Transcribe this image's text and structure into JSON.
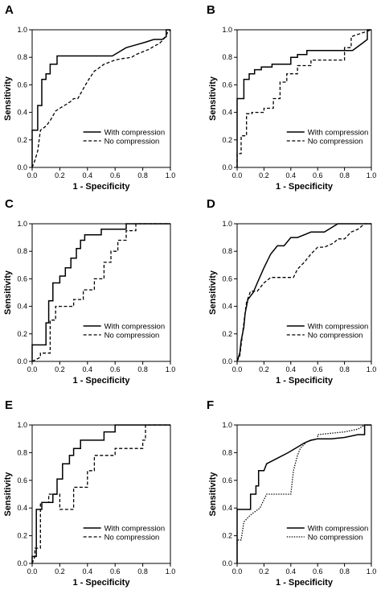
{
  "figure": {
    "panels": [
      {
        "letter": "A",
        "xlabel": "1 - Specificity",
        "ylabel": "Sensitivity"
      },
      {
        "letter": "B",
        "xlabel": "1 - Specificity",
        "ylabel": "Sensitivity"
      },
      {
        "letter": "C",
        "xlabel": "1 - Specificity",
        "ylabel": "Sensitivity"
      },
      {
        "letter": "D",
        "xlabel": "1 - Specificity",
        "ylabel": "Sensitivity"
      },
      {
        "letter": "E",
        "xlabel": "1 - Specificity",
        "ylabel": "Sensitivity"
      },
      {
        "letter": "F",
        "xlabel": "1 - Specificity",
        "ylabel": "Sensitivity"
      }
    ],
    "line_color": "#000000",
    "background_color": "#ffffff"
  },
  "chart_data": [
    {
      "type": "line",
      "panel": "A",
      "xlabel": "1 - Specificity",
      "ylabel": "Sensitivity",
      "xlim": [
        0,
        1
      ],
      "ylim": [
        0,
        1
      ],
      "xticks": [
        "0.0",
        "0.2",
        "0.4",
        "0.6",
        "0.8",
        "1.0"
      ],
      "yticks": [
        "0.0",
        "0.2",
        "0.4",
        "0.6",
        "0.8",
        "1.0"
      ],
      "grid": false,
      "legend": "lower-right",
      "series": [
        {
          "name": "With compression",
          "style": "solid",
          "x": [
            0,
            0,
            0.04,
            0.04,
            0.07,
            0.07,
            0.1,
            0.1,
            0.13,
            0.13,
            0.18,
            0.18,
            0.58,
            0.63,
            0.68,
            0.75,
            0.82,
            0.88,
            0.94,
            0.97,
            0.97,
            1.0
          ],
          "y": [
            0,
            0.27,
            0.27,
            0.45,
            0.45,
            0.64,
            0.64,
            0.68,
            0.68,
            0.75,
            0.75,
            0.81,
            0.81,
            0.84,
            0.87,
            0.89,
            0.91,
            0.93,
            0.93,
            0.95,
            1.0,
            1.0
          ]
        },
        {
          "name": "No compression",
          "style": "dashed",
          "x": [
            0,
            0.02,
            0.04,
            0.06,
            0.1,
            0.13,
            0.17,
            0.2,
            0.25,
            0.28,
            0.3,
            0.33,
            0.38,
            0.41,
            0.45,
            0.48,
            0.52,
            0.6,
            0.65,
            0.72,
            0.75,
            0.8,
            0.85,
            0.88,
            0.92,
            0.95,
            0.98,
            1.0
          ],
          "y": [
            0,
            0.05,
            0.12,
            0.27,
            0.3,
            0.34,
            0.41,
            0.43,
            0.46,
            0.48,
            0.5,
            0.5,
            0.59,
            0.64,
            0.7,
            0.72,
            0.75,
            0.78,
            0.79,
            0.8,
            0.82,
            0.84,
            0.86,
            0.88,
            0.9,
            0.93,
            0.98,
            1.0
          ]
        }
      ]
    },
    {
      "type": "line",
      "panel": "B",
      "xlabel": "1 - Specificity",
      "ylabel": "Sensitivity",
      "xlim": [
        0,
        1
      ],
      "ylim": [
        0,
        1
      ],
      "xticks": [
        "0.0",
        "0.2",
        "0.4",
        "0.6",
        "0.8",
        "1.0"
      ],
      "yticks": [
        "0.0",
        "0.2",
        "0.4",
        "0.6",
        "0.8",
        "1.0"
      ],
      "grid": false,
      "legend": "lower-right",
      "series": [
        {
          "name": "With compression",
          "style": "solid",
          "x": [
            0,
            0,
            0.05,
            0.05,
            0.09,
            0.09,
            0.13,
            0.13,
            0.18,
            0.18,
            0.26,
            0.26,
            0.4,
            0.4,
            0.45,
            0.45,
            0.52,
            0.52,
            0.6,
            0.86,
            0.93,
            0.97,
            0.97,
            1.0
          ],
          "y": [
            0,
            0.5,
            0.5,
            0.64,
            0.64,
            0.68,
            0.68,
            0.71,
            0.71,
            0.73,
            0.73,
            0.75,
            0.75,
            0.8,
            0.8,
            0.82,
            0.82,
            0.85,
            0.85,
            0.85,
            0.9,
            0.93,
            1.0,
            1.0
          ]
        },
        {
          "name": "No compression",
          "style": "dashed",
          "x": [
            0,
            0,
            0.03,
            0.03,
            0.07,
            0.07,
            0.11,
            0.11,
            0.2,
            0.2,
            0.27,
            0.27,
            0.32,
            0.32,
            0.37,
            0.37,
            0.45,
            0.45,
            0.55,
            0.55,
            0.8,
            0.8,
            0.85,
            0.85,
            1.0
          ],
          "y": [
            0,
            0.1,
            0.1,
            0.23,
            0.23,
            0.39,
            0.39,
            0.4,
            0.4,
            0.43,
            0.43,
            0.5,
            0.5,
            0.62,
            0.62,
            0.68,
            0.68,
            0.74,
            0.74,
            0.78,
            0.78,
            0.87,
            0.87,
            0.95,
            1.0
          ]
        }
      ]
    },
    {
      "type": "line",
      "panel": "C",
      "xlabel": "1 - Specificity",
      "ylabel": "Sensitivity",
      "xlim": [
        0,
        1
      ],
      "ylim": [
        0,
        1
      ],
      "xticks": [
        "0.0",
        "0.2",
        "0.4",
        "0.6",
        "0.8",
        "1.0"
      ],
      "yticks": [
        "0.0",
        "0.2",
        "0.4",
        "0.6",
        "0.8",
        "1.0"
      ],
      "grid": false,
      "legend": "lower-right",
      "series": [
        {
          "name": "With compression",
          "style": "solid",
          "x": [
            0,
            0,
            0.1,
            0.1,
            0.12,
            0.12,
            0.15,
            0.15,
            0.2,
            0.2,
            0.24,
            0.24,
            0.28,
            0.28,
            0.32,
            0.32,
            0.35,
            0.35,
            0.38,
            0.38,
            0.5,
            0.5,
            0.68,
            0.68,
            1.0
          ],
          "y": [
            0,
            0.12,
            0.12,
            0.28,
            0.28,
            0.44,
            0.44,
            0.57,
            0.57,
            0.62,
            0.62,
            0.68,
            0.68,
            0.75,
            0.75,
            0.82,
            0.82,
            0.88,
            0.88,
            0.92,
            0.92,
            0.96,
            0.96,
            1.0,
            1.0
          ]
        },
        {
          "name": "No compression",
          "style": "dashed",
          "x": [
            0,
            0.06,
            0.06,
            0.13,
            0.13,
            0.17,
            0.17,
            0.3,
            0.3,
            0.37,
            0.37,
            0.45,
            0.45,
            0.52,
            0.52,
            0.57,
            0.57,
            0.62,
            0.62,
            0.68,
            0.68,
            0.75,
            0.75,
            1.0
          ],
          "y": [
            0,
            0.03,
            0.06,
            0.06,
            0.3,
            0.3,
            0.4,
            0.4,
            0.45,
            0.45,
            0.52,
            0.52,
            0.6,
            0.6,
            0.72,
            0.72,
            0.8,
            0.8,
            0.88,
            0.88,
            0.95,
            0.95,
            1.0,
            1.0
          ]
        }
      ]
    },
    {
      "type": "line",
      "panel": "D",
      "xlabel": "1 - Specificity",
      "ylabel": "Sensitivity",
      "xlim": [
        0,
        1
      ],
      "ylim": [
        0,
        1
      ],
      "xticks": [
        "0.0",
        "0.2",
        "0.4",
        "0.6",
        "0.8",
        "1.0"
      ],
      "yticks": [
        "0.0",
        "0.2",
        "0.4",
        "0.6",
        "0.8",
        "1.0"
      ],
      "grid": false,
      "legend": "lower-right",
      "series": [
        {
          "name": "With compression",
          "style": "solid",
          "x": [
            0,
            0.02,
            0.03,
            0.05,
            0.06,
            0.08,
            0.12,
            0.15,
            0.2,
            0.25,
            0.3,
            0.35,
            0.4,
            0.45,
            0.55,
            0.65,
            0.75,
            0.85,
            0.95,
            1.0
          ],
          "y": [
            0,
            0.06,
            0.15,
            0.25,
            0.35,
            0.45,
            0.5,
            0.57,
            0.68,
            0.78,
            0.84,
            0.84,
            0.9,
            0.9,
            0.94,
            0.94,
            1.0,
            1.0,
            1.0,
            1.0
          ],
          "note": ""
        },
        {
          "name": "No compression",
          "style": "dashed",
          "x": [
            0,
            0.02,
            0.03,
            0.05,
            0.07,
            0.1,
            0.15,
            0.2,
            0.25,
            0.35,
            0.42,
            0.45,
            0.5,
            0.55,
            0.6,
            0.65,
            0.72,
            0.75,
            0.8,
            0.85,
            0.9,
            0.95,
            1.0
          ],
          "y": [
            0,
            0.04,
            0.12,
            0.28,
            0.43,
            0.51,
            0.51,
            0.57,
            0.61,
            0.61,
            0.61,
            0.67,
            0.72,
            0.78,
            0.83,
            0.83,
            0.86,
            0.89,
            0.89,
            0.94,
            0.96,
            1.0,
            1.0
          ]
        }
      ]
    },
    {
      "type": "line",
      "panel": "E",
      "xlabel": "1 - Specificity",
      "ylabel": "Sensitivity",
      "xlim": [
        0,
        1
      ],
      "ylim": [
        0,
        1
      ],
      "xticks": [
        "0.0",
        "0.2",
        "0.4",
        "0.6",
        "0.8",
        "1.0"
      ],
      "yticks": [
        "0.0",
        "0.2",
        "0.4",
        "0.6",
        "0.8",
        "1.0"
      ],
      "grid": false,
      "legend": "lower-right",
      "series": [
        {
          "name": "With compression",
          "style": "solid",
          "x": [
            0,
            0,
            0.03,
            0.03,
            0.07,
            0.07,
            0.15,
            0.15,
            0.18,
            0.18,
            0.22,
            0.22,
            0.27,
            0.27,
            0.3,
            0.3,
            0.35,
            0.35,
            0.52,
            0.52,
            0.6,
            0.6,
            1.0
          ],
          "y": [
            0,
            0.05,
            0.05,
            0.39,
            0.39,
            0.44,
            0.44,
            0.5,
            0.5,
            0.61,
            0.61,
            0.72,
            0.72,
            0.78,
            0.78,
            0.83,
            0.83,
            0.89,
            0.89,
            0.95,
            0.95,
            1.0,
            1.0
          ]
        },
        {
          "name": "No compression",
          "style": "dashed",
          "x": [
            0,
            0.02,
            0.02,
            0.06,
            0.06,
            0.12,
            0.12,
            0.2,
            0.2,
            0.3,
            0.3,
            0.4,
            0.4,
            0.45,
            0.45,
            0.6,
            0.6,
            0.8,
            0.8,
            0.82,
            0.82,
            1.0
          ],
          "y": [
            0,
            0.05,
            0.11,
            0.11,
            0.44,
            0.44,
            0.5,
            0.5,
            0.39,
            0.39,
            0.55,
            0.55,
            0.67,
            0.67,
            0.78,
            0.78,
            0.83,
            0.83,
            0.89,
            0.89,
            1.0,
            1.0
          ]
        }
      ]
    },
    {
      "type": "line",
      "panel": "F",
      "xlabel": "1 - Specificity",
      "ylabel": "Sensitivity",
      "xlim": [
        0,
        1
      ],
      "ylim": [
        0,
        1
      ],
      "xticks": [
        "0.0",
        "0.2",
        "0.4",
        "0.6",
        "0.8",
        "1.0"
      ],
      "yticks": [
        "0.0",
        "0.2",
        "0.4",
        "0.6",
        "0.8",
        "1.0"
      ],
      "grid": false,
      "legend": "lower-right",
      "series": [
        {
          "name": "With compression",
          "style": "solid",
          "x": [
            0,
            0,
            0.1,
            0.1,
            0.14,
            0.14,
            0.16,
            0.16,
            0.2,
            0.22,
            0.3,
            0.38,
            0.45,
            0.5,
            0.55,
            0.6,
            0.7,
            0.8,
            0.9,
            0.95,
            0.95,
            1.0
          ],
          "y": [
            0,
            0.39,
            0.39,
            0.5,
            0.5,
            0.56,
            0.56,
            0.67,
            0.67,
            0.72,
            0.76,
            0.8,
            0.84,
            0.87,
            0.89,
            0.9,
            0.9,
            0.91,
            0.93,
            0.93,
            1.0,
            1.0
          ]
        },
        {
          "name": "No compression",
          "style": "dotted",
          "x": [
            0,
            0,
            0.03,
            0.05,
            0.1,
            0.17,
            0.22,
            0.35,
            0.4,
            0.42,
            0.45,
            0.47,
            0.5,
            0.52,
            0.6,
            0.6,
            0.8,
            0.9,
            0.95,
            1.0
          ],
          "y": [
            0,
            0.17,
            0.17,
            0.3,
            0.35,
            0.4,
            0.5,
            0.5,
            0.5,
            0.67,
            0.78,
            0.83,
            0.86,
            0.88,
            0.9,
            0.93,
            0.95,
            0.97,
            1.0,
            1.0
          ]
        }
      ]
    }
  ]
}
